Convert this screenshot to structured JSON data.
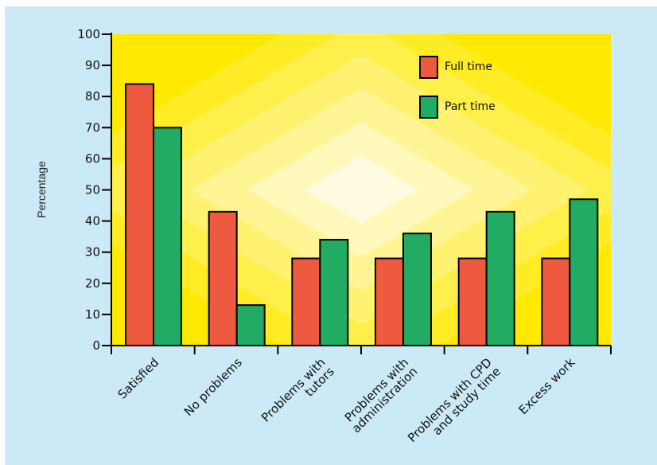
{
  "chart_data": {
    "type": "bar",
    "categories": [
      "Satisfied",
      "No problems",
      "Problems with\ntutors",
      "Problems with\nadministration",
      "Problems with CPD\nand study time",
      "Excess work"
    ],
    "series": [
      {
        "name": "Full time",
        "values": [
          84,
          43,
          28,
          28,
          28,
          28
        ],
        "color": "#ee5a3f"
      },
      {
        "name": "Part time",
        "values": [
          70,
          13,
          34,
          36,
          43,
          47
        ],
        "color": "#22ab63"
      }
    ],
    "ylabel": "Percentage",
    "xlabel": "",
    "ylim": [
      0,
      100
    ],
    "yticks": [
      0,
      10,
      20,
      30,
      40,
      50,
      60,
      70,
      80,
      90,
      100
    ],
    "legend_position": "top-right",
    "grid": false,
    "background": {
      "outer": "#cce9f7",
      "plot_edge": "#ffe900",
      "plot_center": "#fffbe0"
    }
  }
}
